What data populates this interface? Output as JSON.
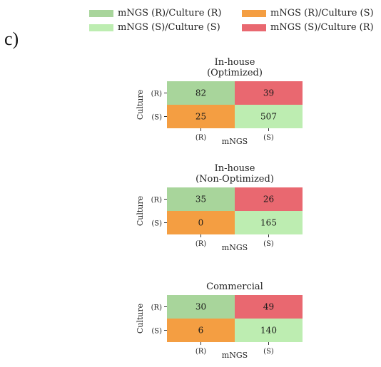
{
  "panel_label": "c)",
  "legend": [
    {
      "label": "mNGS (R)/Culture (R)",
      "color": "#a8d59b"
    },
    {
      "label": "mNGS (R)/Culture (S)",
      "color": "#f49e42"
    },
    {
      "label": "mNGS (S)/Culture (S)",
      "color": "#bdedb1"
    },
    {
      "label": "mNGS (S)/Culture (R)",
      "color": "#e96870"
    }
  ],
  "chart_data": [
    {
      "type": "heatmap",
      "title_lines": [
        "In-house",
        "(Optimized)"
      ],
      "xlabel": "mNGS",
      "ylabel": "Culture",
      "x_ticks": [
        "(R)",
        "(S)"
      ],
      "y_ticks": [
        "(R)",
        "(S)"
      ],
      "values": [
        [
          82,
          39
        ],
        [
          25,
          507
        ]
      ],
      "colors": [
        [
          "#a8d59b",
          "#e96870"
        ],
        [
          "#f49e42",
          "#bdedb1"
        ]
      ]
    },
    {
      "type": "heatmap",
      "title_lines": [
        "In-house",
        "(Non-Optimized)"
      ],
      "xlabel": "mNGS",
      "ylabel": "Culture",
      "x_ticks": [
        "(R)",
        "(S)"
      ],
      "y_ticks": [
        "(R)",
        "(S)"
      ],
      "values": [
        [
          35,
          26
        ],
        [
          0,
          165
        ]
      ],
      "colors": [
        [
          "#a8d59b",
          "#e96870"
        ],
        [
          "#f49e42",
          "#bdedb1"
        ]
      ]
    },
    {
      "type": "heatmap",
      "title_lines": [
        "Commercial"
      ],
      "xlabel": "mNGS",
      "ylabel": "Culture",
      "x_ticks": [
        "(R)",
        "(S)"
      ],
      "y_ticks": [
        "(R)",
        "(S)"
      ],
      "values": [
        [
          30,
          49
        ],
        [
          6,
          140
        ]
      ],
      "colors": [
        [
          "#a8d59b",
          "#e96870"
        ],
        [
          "#f49e42",
          "#bdedb1"
        ]
      ]
    }
  ]
}
